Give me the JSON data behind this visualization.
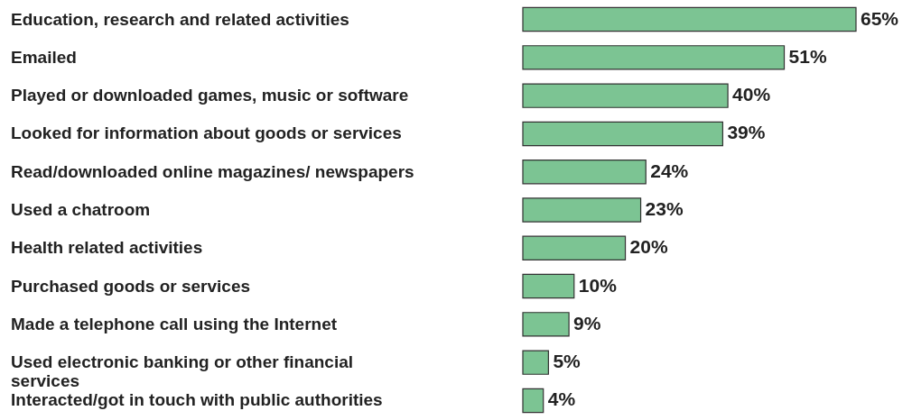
{
  "chart_data": {
    "type": "bar",
    "orientation": "horizontal",
    "categories": [
      "Education, research and related activities",
      "Emailed",
      "Played or downloaded games, music or software",
      "Looked for information about goods or services",
      "Read/downloaded online magazines/  newspapers",
      "Used a chatroom",
      "Health related activities",
      "Purchased goods or services",
      "Made a telephone call using the Internet",
      "Used electronic banking or other financial\nservices",
      "Interacted/got in touch with public authorities"
    ],
    "values": [
      65,
      51,
      40,
      39,
      24,
      23,
      20,
      10,
      9,
      5,
      4
    ],
    "value_labels": [
      "65%",
      "51%",
      "40%",
      "39%",
      "24%",
      "23%",
      "20%",
      "10%",
      "9%",
      "5%",
      "4%"
    ],
    "color": "#7cc493",
    "xlim": [
      0,
      65
    ],
    "tick_labels": "y"
  }
}
